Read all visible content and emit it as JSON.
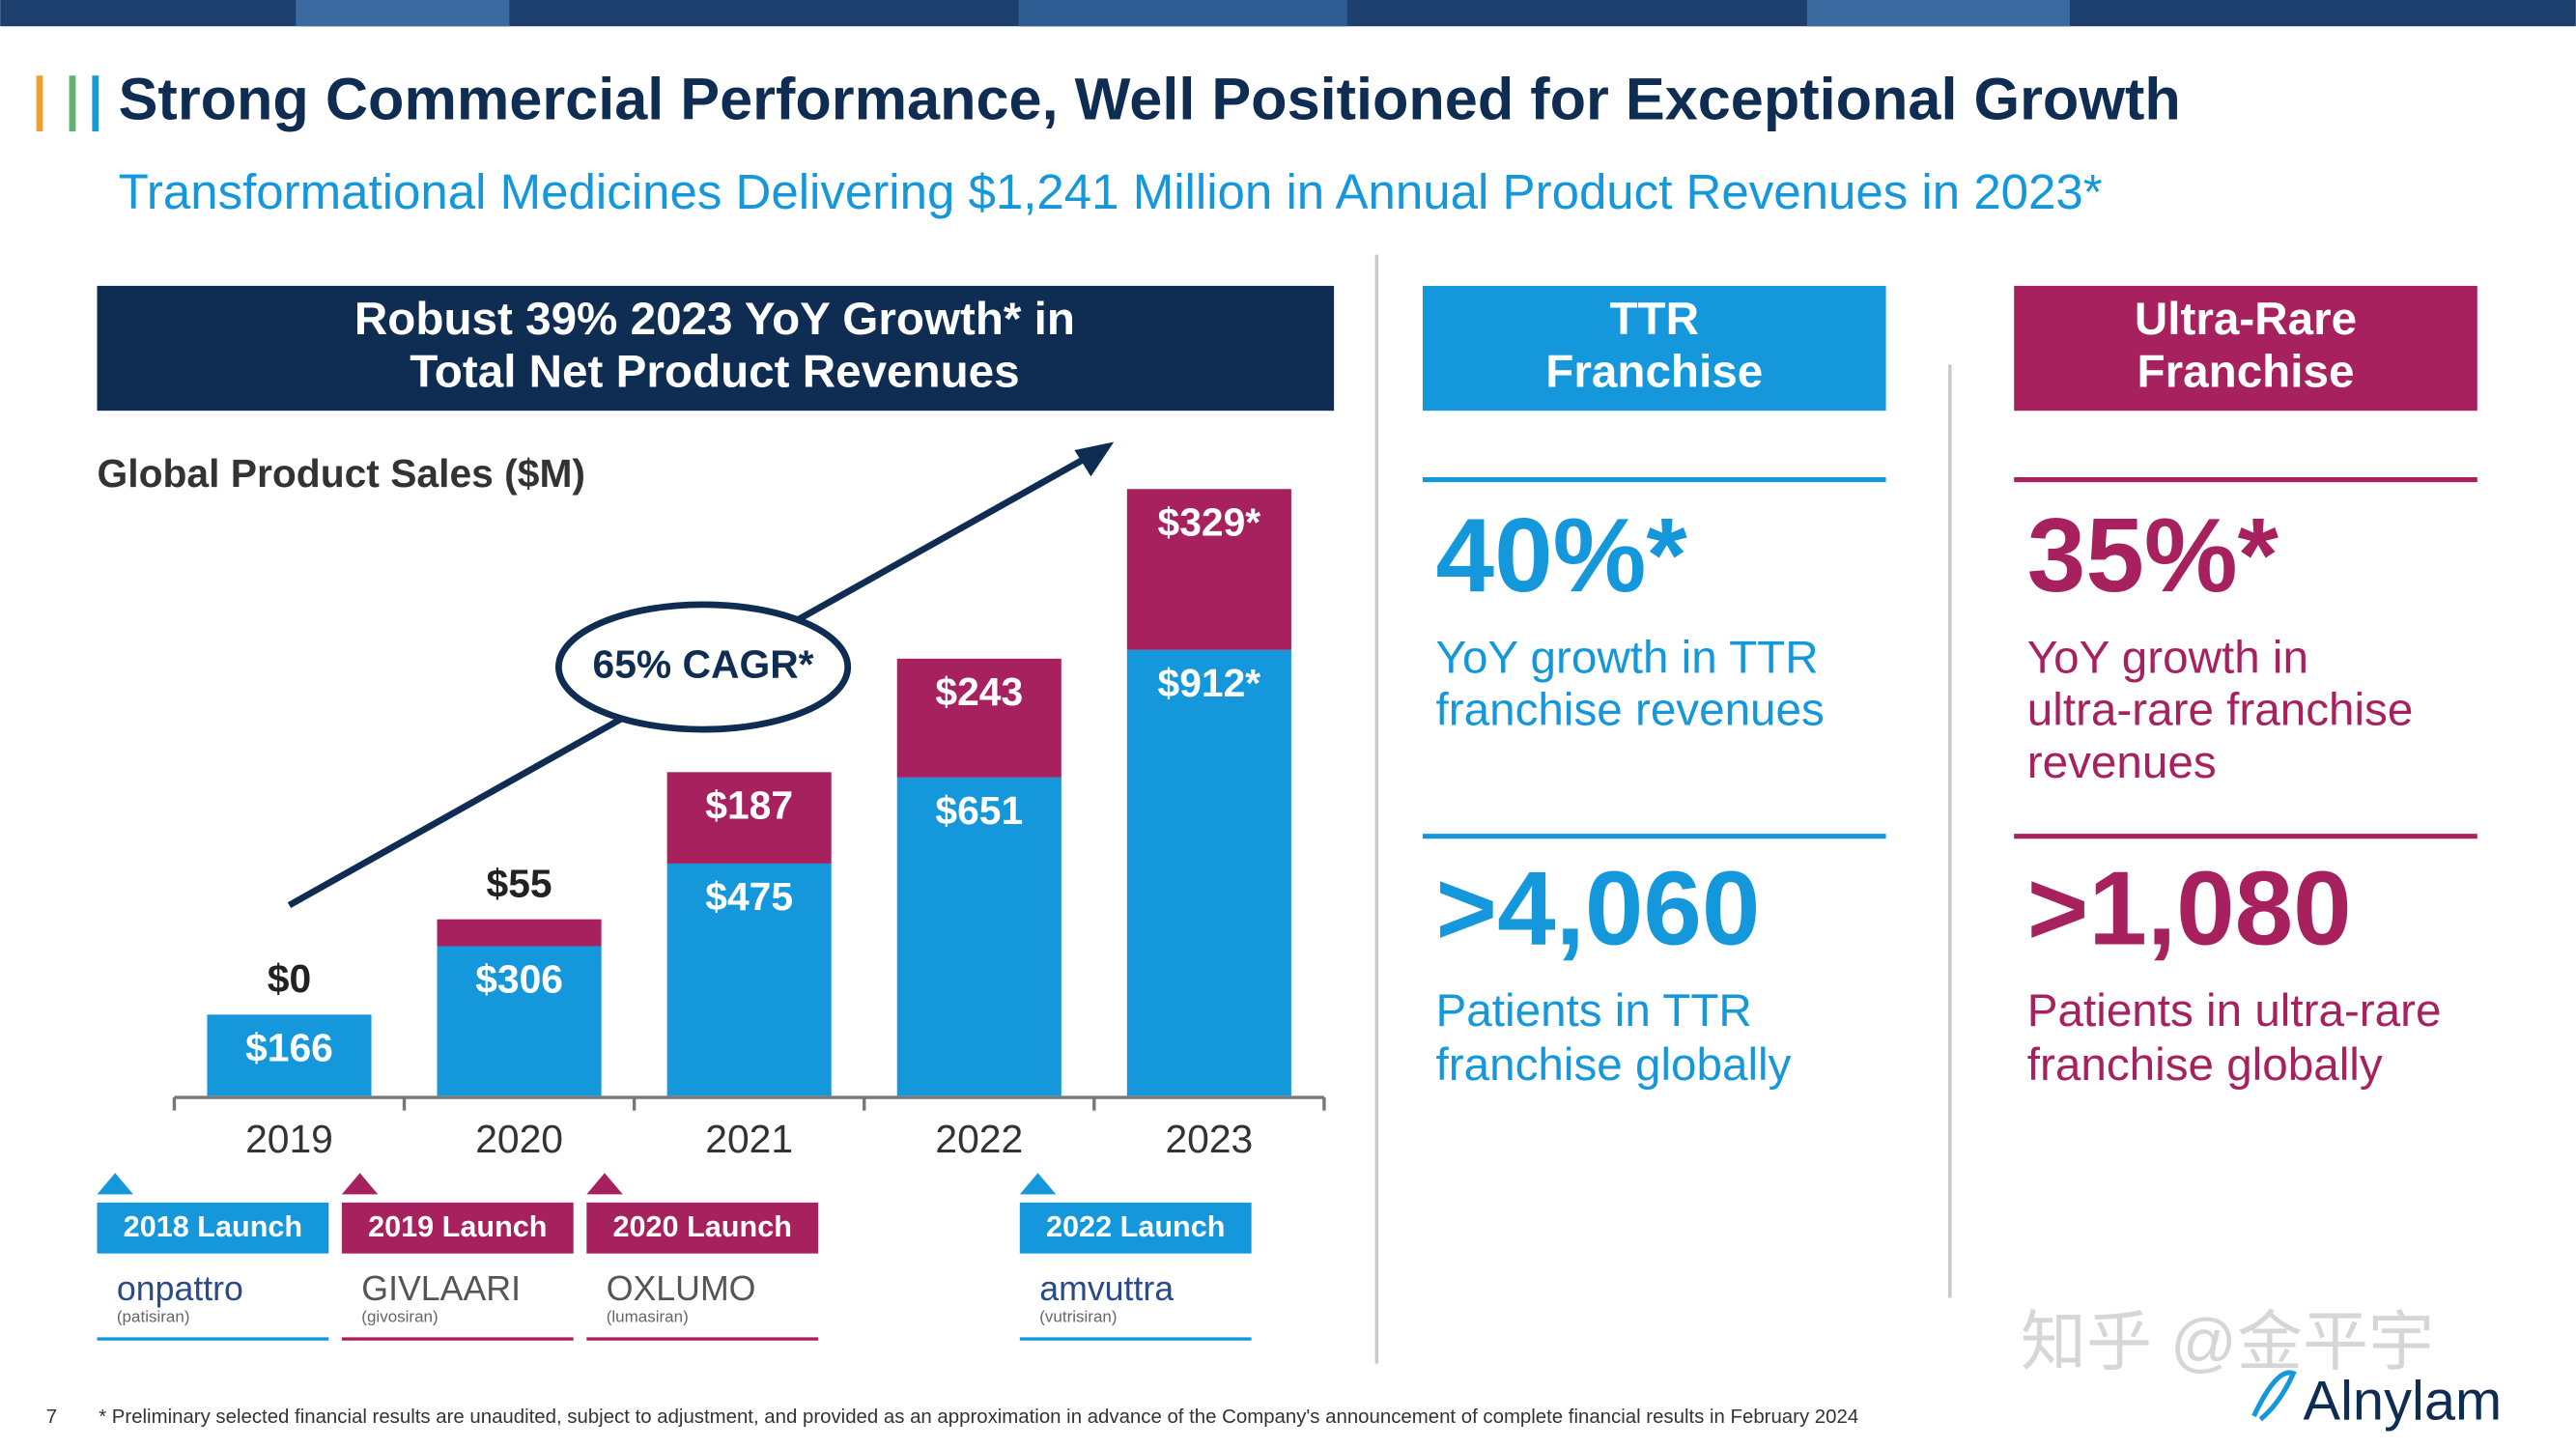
{
  "header": {
    "title": "Strong Commercial Performance, Well Positioned for Exceptional Growth",
    "subtitle": "Transformational Medicines Delivering $1,241 Million in Annual Product Revenues in 2023*"
  },
  "chart_banner": [
    "Robust 39% 2023 YoY Growth* in",
    "Total Net Product Revenues"
  ],
  "chart_data": {
    "type": "stacked_bar",
    "title": "Global Product Sales ($M)",
    "annotation": "65% CAGR*",
    "categories": [
      "2019",
      "2020",
      "2021",
      "2022",
      "2023"
    ],
    "series": [
      {
        "color": "#1598db",
        "values": [
          166,
          306,
          475,
          651,
          912
        ],
        "value_labels": [
          "$166",
          "$306",
          "$475",
          "$651",
          "$912*"
        ]
      },
      {
        "color": "#a8215f",
        "values": [
          0,
          55,
          187,
          243,
          329
        ],
        "value_labels": [
          "$0",
          "$55",
          "$187",
          "$243",
          "$329*"
        ]
      }
    ],
    "ylim": [
      0,
      1250
    ]
  },
  "launches": [
    {
      "label": "2018 Launch",
      "product": "onpattro",
      "generic": "(patisiran)",
      "color": "#1598db",
      "slot": 0
    },
    {
      "label": "2019 Launch",
      "product": "GIVLAARI",
      "generic": "(givosiran)",
      "color": "#a8215f",
      "slot": 1
    },
    {
      "label": "2020 Launch",
      "product": "OXLUMO",
      "generic": "(lumasiran)",
      "color": "#a8215f",
      "slot": 2
    },
    {
      "label": "2022 Launch",
      "product": "amvuttra",
      "generic": "(vutrisiran)",
      "color": "#1598db",
      "slot": 3.77
    }
  ],
  "franchises": [
    {
      "title": [
        "TTR",
        "Franchise"
      ],
      "growth": "40%*",
      "growth_text": [
        "YoY growth in TTR",
        "franchise revenues"
      ],
      "patients": ">4,060",
      "patients_text": [
        "Patients in TTR",
        "franchise globally"
      ],
      "color": "#1598db"
    },
    {
      "title": [
        "Ultra-Rare",
        "Franchise"
      ],
      "growth": "35%*",
      "growth_text": [
        "YoY growth in",
        "ultra-rare franchise",
        "revenues"
      ],
      "patients": ">1,080",
      "patients_text": [
        "Patients in ultra-rare",
        "franchise globally"
      ],
      "color": "#a8215f"
    }
  ],
  "footnote": "* Preliminary selected financial results are unaudited, subject to adjustment, and provided as an approximation in advance of the Company's announcement of complete financial results in February 2024",
  "page_number": "7",
  "logo": "Alnylam",
  "watermark": "知乎 @金平宇"
}
